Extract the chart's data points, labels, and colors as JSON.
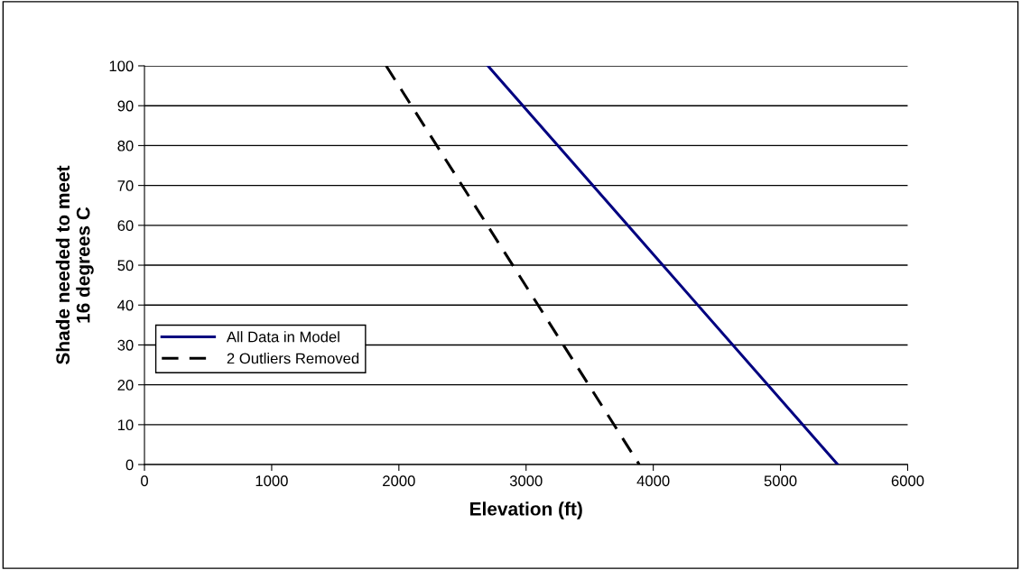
{
  "chart_data": {
    "type": "line",
    "xlabel": "Elevation (ft)",
    "ylabel": "Shade needed to meet\n16 degrees C",
    "series": [
      {
        "name": "All Data in Model",
        "color": "#000080",
        "x": [
          2700,
          5450
        ],
        "values": [
          100,
          0
        ],
        "line_style": "solid"
      },
      {
        "name": "2 Outliers Removed",
        "color": "#000000",
        "x": [
          1900,
          3890
        ],
        "values": [
          100,
          0
        ],
        "line_style": "dashed"
      }
    ],
    "xlim": [
      0,
      6000
    ],
    "xticks": [
      0,
      1000,
      2000,
      3000,
      4000,
      5000,
      6000
    ],
    "ylim": [
      0,
      100
    ],
    "yticks": [
      0,
      10,
      20,
      30,
      40,
      50,
      60,
      70,
      80,
      90,
      100
    ],
    "grid": "y",
    "legend": "left",
    "marker": "none"
  }
}
